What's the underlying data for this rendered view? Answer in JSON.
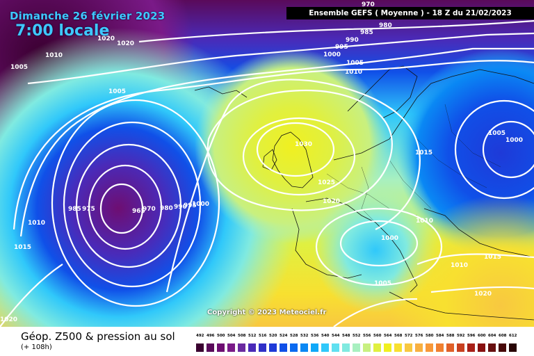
{
  "title": {
    "date": "Dimanche 26 février 2023",
    "time": "7:00 locale"
  },
  "header": "Ensemble GEFS  ( Moyenne )  -  18 Z du 21/02/2023",
  "copyright": "Copyright © 2023 Meteociel.fr",
  "footer": {
    "title": "Géop. Z500 & pression au sol",
    "subtitle": "(+ 108h)"
  },
  "legend": {
    "values": [
      "492",
      "496",
      "500",
      "504",
      "508",
      "512",
      "516",
      "520",
      "524",
      "528",
      "532",
      "536",
      "540",
      "544",
      "548",
      "552",
      "556",
      "560",
      "564",
      "568",
      "572",
      "576",
      "580",
      "584",
      "588",
      "592",
      "596",
      "600",
      "604",
      "608",
      "612"
    ],
    "colors": [
      "#3a0030",
      "#5a0a5a",
      "#6e0e72",
      "#7a1a88",
      "#6a2aa0",
      "#4a2ab8",
      "#3030c8",
      "#1e3ad8",
      "#1050e8",
      "#0a6af0",
      "#0a88f4",
      "#10a8f8",
      "#30c8fa",
      "#60e0f0",
      "#80eae0",
      "#a8f0c0",
      "#c8f080",
      "#e0f040",
      "#f0f020",
      "#f8e030",
      "#f8c840",
      "#f8b040",
      "#f89838",
      "#f08030",
      "#e06028",
      "#c84020",
      "#a82018",
      "#881010",
      "#681010",
      "#480808",
      "#280404"
    ]
  },
  "isobars": [
    "970",
    "980",
    "985",
    "990",
    "995",
    "1000",
    "1005",
    "1010",
    "1015",
    "1020",
    "1025",
    "1030",
    "960",
    "965",
    "975"
  ]
}
